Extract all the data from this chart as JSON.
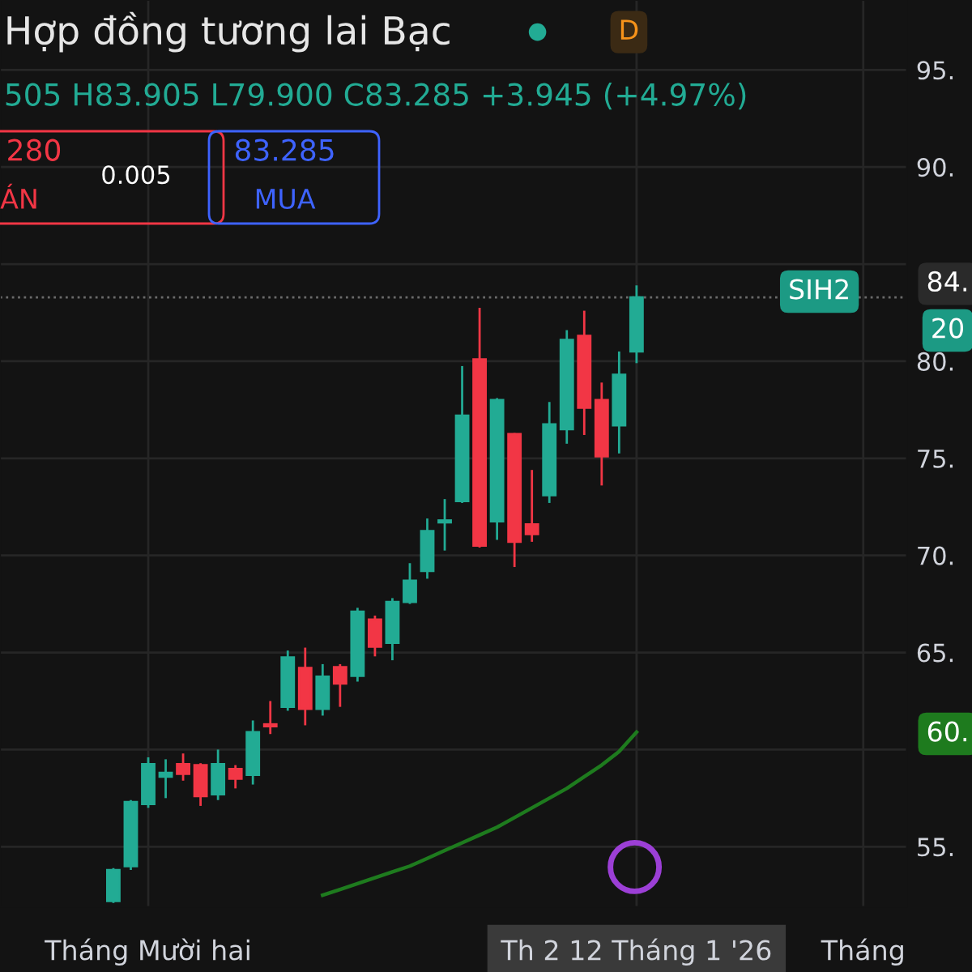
{
  "chart_data": {
    "type": "candlestick",
    "title": "Hợp đồng tương lai Bạc",
    "subtitle": "505 H83.905 L79.900 C83.285 +3.945 (+4.97%)",
    "categories": [
      null,
      null,
      "Tháng Mười hai",
      null,
      null,
      null,
      null,
      null,
      null,
      null,
      null,
      null,
      null,
      null,
      null,
      null,
      null,
      null,
      null,
      null,
      null,
      null,
      null,
      null,
      null,
      null,
      null,
      null,
      null,
      null,
      "Th 2 12 Tháng 1 '26",
      null,
      null,
      null,
      null,
      null,
      null,
      null,
      null,
      null,
      null,
      null,
      null,
      "Tháng",
      null,
      null
    ],
    "ohlc": [
      [
        52.2,
        53.9,
        52.1,
        53.8
      ],
      [
        54.0,
        57.4,
        53.8,
        57.3
      ],
      [
        57.2,
        59.6,
        57.0,
        59.25
      ],
      [
        58.6,
        59.5,
        57.5,
        58.8
      ],
      [
        59.25,
        59.8,
        58.4,
        58.75
      ],
      [
        59.2,
        59.3,
        57.1,
        57.6
      ],
      [
        57.7,
        60.0,
        57.4,
        59.25
      ],
      [
        59.0,
        59.2,
        58.0,
        58.5
      ],
      [
        58.7,
        61.5,
        58.2,
        60.9
      ],
      [
        61.3,
        62.5,
        60.8,
        61.2
      ],
      [
        62.2,
        65.1,
        62.0,
        64.75
      ],
      [
        64.2,
        65.25,
        61.25,
        62.1
      ],
      [
        62.1,
        64.4,
        61.75,
        63.75
      ],
      [
        64.25,
        64.4,
        62.2,
        63.4
      ],
      [
        63.8,
        67.3,
        63.5,
        67.1
      ],
      [
        66.7,
        66.9,
        64.8,
        65.3
      ],
      [
        65.5,
        67.8,
        64.6,
        67.6
      ],
      [
        67.6,
        69.6,
        67.5,
        68.7
      ],
      [
        69.2,
        71.9,
        68.8,
        71.25
      ],
      [
        71.7,
        72.9,
        70.25,
        71.8
      ],
      [
        72.8,
        79.75,
        72.7,
        77.2
      ],
      [
        80.1,
        82.75,
        70.4,
        70.5
      ],
      [
        71.75,
        78.1,
        70.8,
        78.0
      ],
      [
        76.25,
        76.3,
        69.4,
        70.7
      ],
      [
        71.6,
        74.4,
        70.7,
        71.1
      ],
      [
        73.1,
        77.9,
        72.7,
        76.75
      ],
      [
        76.5,
        81.6,
        75.75,
        81.1
      ],
      [
        81.3,
        82.6,
        76.2,
        77.6
      ],
      [
        78.0,
        78.9,
        73.6,
        75.1
      ],
      [
        76.7,
        80.5,
        75.25,
        79.3
      ],
      [
        80.505,
        83.905,
        79.9,
        83.285
      ],
      null,
      null,
      null,
      null,
      null,
      null,
      null,
      null,
      null,
      null,
      null,
      null,
      null,
      null,
      null
    ],
    "colors": [
      "#22ab94",
      "#22ab94",
      "#22ab94",
      "#22ab94",
      "#f23645",
      "#f23645",
      "#22ab94",
      "#f23645",
      "#22ab94",
      "#f23645",
      "#22ab94",
      "#f23645",
      "#22ab94",
      "#f23645",
      "#22ab94",
      "#f23645",
      "#22ab94",
      "#22ab94",
      "#22ab94",
      "#22ab94",
      "#22ab94",
      "#f23645",
      "#22ab94",
      "#f23645",
      "#f23645",
      "#22ab94",
      "#22ab94",
      "#f23645",
      "#f23645",
      "#22ab94",
      "#22ab94",
      null,
      null,
      null,
      null,
      null,
      null,
      null,
      null,
      null,
      null,
      null,
      null,
      null,
      null,
      null
    ],
    "series": [
      {
        "type": "line",
        "color": "#1e7b1e",
        "values": [
          null,
          null,
          null,
          null,
          null,
          null,
          null,
          null,
          null,
          null,
          null,
          null,
          52.5,
          52.8,
          53.1,
          53.4,
          53.7,
          54.0,
          54.4,
          54.8,
          55.2,
          55.6,
          56.0,
          56.5,
          57.0,
          57.5,
          58.0,
          58.6,
          59.2,
          59.9,
          60.9,
          null,
          null,
          null,
          null,
          null,
          null,
          null,
          null,
          null,
          null,
          null,
          null,
          null,
          null,
          null
        ]
      }
    ],
    "ylim": [
      51.9,
      98.6
    ],
    "yticks": [
      {
        "value": 55,
        "label": "55."
      },
      {
        "value": 60,
        "label": null
      },
      {
        "value": 65,
        "label": "65."
      },
      {
        "value": 70,
        "label": "70."
      },
      {
        "value": 75,
        "label": "75."
      },
      {
        "value": 80,
        "label": "80."
      },
      {
        "value": 85,
        "label": null
      },
      {
        "value": 90,
        "label": "90."
      },
      {
        "value": 95,
        "label": "95."
      }
    ],
    "ref_lines": [
      {
        "axis": "y",
        "value": 83.285,
        "line_style": "dotted",
        "color": "#6b6b6b"
      }
    ],
    "grid": true,
    "annotations": [
      "D",
      "280",
      "ÁN",
      "0.005",
      "83.285",
      "MUA",
      "SIH2",
      "84.",
      "20",
      "60."
    ]
  }
}
